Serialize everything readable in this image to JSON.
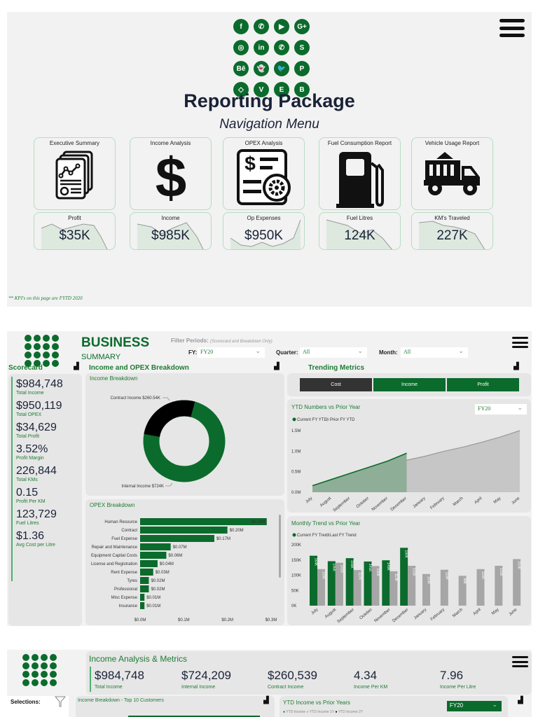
{
  "panel1": {
    "title": "Reporting Package",
    "subtitle": "Navigation Menu",
    "social_icons": [
      "facebook-icon",
      "whatsapp-icon",
      "youtube-icon",
      "google-plus-icon",
      "instagram-icon",
      "linkedin-icon",
      "whatsapp-icon",
      "skype-icon",
      "behance-icon",
      "snapchat-icon",
      "twitter-icon",
      "pinterest-icon",
      "dropbox-icon",
      "vimeo-icon",
      "evernote-icon",
      "blogger-icon"
    ],
    "social_glyphs": [
      "f",
      "✆",
      "▶",
      "G+",
      "◎",
      "in",
      "✆",
      "S",
      "Bē",
      "👻",
      "🐦",
      "P",
      "◇",
      "V",
      "E",
      "B"
    ],
    "nav_cards": [
      {
        "label": "Executive Summary",
        "icon": "report-icon"
      },
      {
        "label": "Income Analysis",
        "icon": "dollar-icon"
      },
      {
        "label": "OPEX Analysis",
        "icon": "opex-icon"
      },
      {
        "label": "Fuel Consumption Report",
        "icon": "fuel-pump-icon"
      },
      {
        "label": "Vehicle Usage Report",
        "icon": "dump-truck-icon"
      }
    ],
    "kpi_cards": [
      {
        "label": "Profit",
        "value": "$35K"
      },
      {
        "label": "Income",
        "value": "$985K"
      },
      {
        "label": "Op Expenses",
        "value": "$950K"
      },
      {
        "label": "Fuel Litres",
        "value": "124K"
      },
      {
        "label": "KM's Traveled",
        "value": "227K"
      }
    ],
    "footnote": "** KPI's on this page are FYTD 2020"
  },
  "panel2": {
    "title": "BUSINESS",
    "subtitle": "SUMMARY",
    "filter_label": "Filter Periods:",
    "filter_note": "(Scorecard and Breakdown Only)",
    "fy_label": "FY:",
    "fy_value": "FY20",
    "quarter_label": "Quarter:",
    "quarter_value": "All",
    "month_label": "Month:",
    "month_value": "All",
    "scorecard_title": "Scorecard",
    "breakdown_title": "Income and OPEX Breakdown",
    "trending_title": "Trending Metrics",
    "scorecard": [
      {
        "value": "$984,748",
        "label": "Total Income"
      },
      {
        "value": "$950,119",
        "label": "Total OPEX"
      },
      {
        "value": "$34,629",
        "label": "Total Profit"
      },
      {
        "value": "3.52%",
        "label": "Profit Margin"
      },
      {
        "value": "226,844",
        "label": "Total KMs"
      },
      {
        "value": "0.15",
        "label": "Profit Per KM"
      },
      {
        "value": "123,729",
        "label": "Fuel Litres"
      },
      {
        "value": "$1.36",
        "label": "Avg Cost per Litre"
      }
    ],
    "income_breakdown_title": "Income Breakdown",
    "opex_breakdown_title": "OPEX Breakdown",
    "buttons": [
      "Cost",
      "Income",
      "Profit"
    ],
    "ytd_title": "YTD Numbers vs Prior Year",
    "ytd_fy_value": "FY20",
    "monthly_title": "Monthly Trend vs Prior Year"
  },
  "panel3": {
    "title": "Income Analysis & Metrics",
    "metrics": [
      {
        "value": "$984,748",
        "label": "Total Income"
      },
      {
        "value": "$724,209",
        "label": "Internal Income"
      },
      {
        "value": "$260,539",
        "label": "Contract Income"
      },
      {
        "value": "4.34",
        "label": "Income Per KM"
      },
      {
        "value": "7.96",
        "label": "Income Per Litre"
      }
    ],
    "selections_label": "Selections:",
    "top10_title": "Income Breakdown - Top 10 Customers",
    "ytd_income_title": "YTD Income vs Prior Years",
    "ytd_income_fy": "FY20",
    "ytd_income_legend": [
      "YTD Income",
      "YTD Income 1Y",
      "YTD Income 2Y"
    ]
  },
  "chart_data": [
    {
      "type": "pie",
      "title": "Income Breakdown",
      "categories": [
        "Contract Income",
        "Internal Income"
      ],
      "values": [
        260.54,
        724
      ],
      "labels": [
        "Contract Income $260.54K",
        "Internal Income $724K"
      ],
      "colors": [
        "#000000",
        "#0b6b2c"
      ]
    },
    {
      "type": "bar",
      "title": "OPEX Breakdown",
      "categories": [
        "Human Resource",
        "Contract",
        "Fuel Expense",
        "Repair and Maintenance",
        "Equipment Capital Costs",
        "License and Registration",
        "Rent Expense",
        "Tyres",
        "Professional",
        "Misc Expense",
        "Insurance"
      ],
      "values": [
        0.29,
        0.2,
        0.17,
        0.07,
        0.06,
        0.04,
        0.03,
        0.02,
        0.02,
        0.01,
        0.01
      ],
      "labels": [
        "$0.29M",
        "$0.20M",
        "$0.17M",
        "$0.07M",
        "$0.06M",
        "$0.04M",
        "$0.03M",
        "$0.02M",
        "$0.02M",
        "$0.01M",
        "$0.01M"
      ],
      "xticks": [
        "$0.0M",
        "$0.1M",
        "$0.2M",
        "$0.3M"
      ],
      "xlim": [
        0,
        0.3
      ],
      "orientation": "horizontal"
    },
    {
      "type": "area",
      "title": "YTD Numbers vs Prior Year",
      "x": [
        "July",
        "August",
        "September",
        "October",
        "November",
        "December",
        "January",
        "February",
        "March",
        "April",
        "May",
        "June"
      ],
      "series": [
        {
          "name": "Current FY YTD",
          "values": [
            0.16,
            0.31,
            0.46,
            0.61,
            0.76,
            0.95,
            null,
            null,
            null,
            null,
            null,
            null
          ]
        },
        {
          "name": "Prior FY YTD",
          "values": [
            0.12,
            0.26,
            0.4,
            0.52,
            0.65,
            0.78,
            0.88,
            1.0,
            1.1,
            1.22,
            1.35,
            1.5
          ]
        }
      ],
      "yticks": [
        "0.0M",
        "0.5M",
        "1.0M",
        "1.5M"
      ],
      "ylim": [
        0,
        1.6
      ]
    },
    {
      "type": "bar",
      "title": "Monthly Trend vs Prior Year",
      "categories": [
        "July",
        "August",
        "September",
        "October",
        "November",
        "December",
        "January",
        "February",
        "March",
        "April",
        "May",
        "June"
      ],
      "series": [
        {
          "name": "Current FY Trend",
          "values": [
            164,
            146,
            156,
            145,
            149,
            190,
            null,
            null,
            null,
            null,
            null,
            null
          ]
        },
        {
          "name": "Last FY Trend",
          "values": [
            120,
            141,
            117,
            130,
            113,
            131,
            104,
            118,
            98,
            120,
            131,
            153
          ]
        }
      ],
      "yticks": [
        "0K",
        "50K",
        "100K",
        "150K",
        "200K"
      ],
      "ylim": [
        0,
        200
      ]
    }
  ]
}
